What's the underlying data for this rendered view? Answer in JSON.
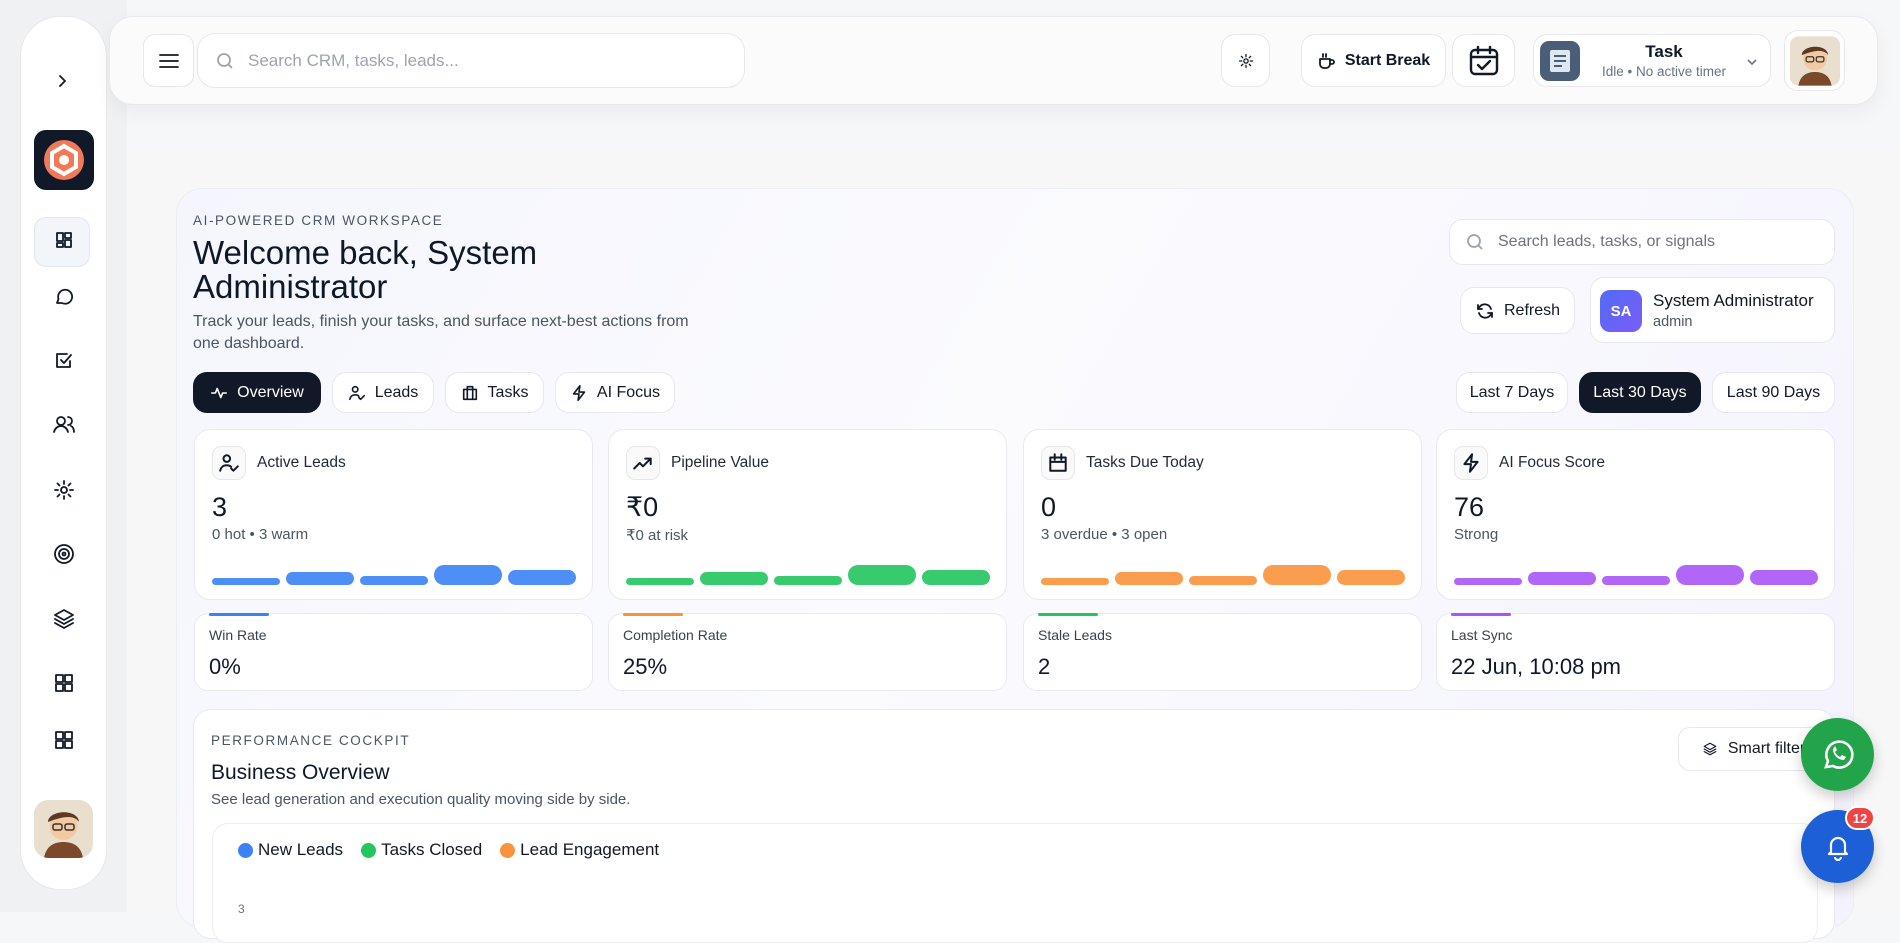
{
  "header": {
    "search_placeholder": "Search CRM, tasks, leads...",
    "start_break": "Start Break",
    "task_title": "Task",
    "task_status": "Idle • No active timer"
  },
  "hero": {
    "eyebrow": "AI-POWERED CRM WORKSPACE",
    "title": "Welcome back, System Administrator",
    "subtitle": "Track your leads, finish your tasks, and surface next-best actions from one dashboard.",
    "search_placeholder": "Search leads, tasks, or signals",
    "refresh": "Refresh",
    "user": {
      "initials": "SA",
      "name": "System Administrator",
      "role": "admin"
    }
  },
  "tabs": [
    "Overview",
    "Leads",
    "Tasks",
    "AI Focus"
  ],
  "ranges": [
    "Last 7 Days",
    "Last 30 Days",
    "Last 90 Days"
  ],
  "kpis": [
    {
      "label": "Active Leads",
      "value": "3",
      "note": "0 hot • 3 warm"
    },
    {
      "label": "Pipeline Value",
      "value": "₹0",
      "note": "₹0 at risk"
    },
    {
      "label": "Tasks Due Today",
      "value": "0",
      "note": "3 overdue • 3 open"
    },
    {
      "label": "AI Focus Score",
      "value": "76",
      "note": "Strong"
    }
  ],
  "metrics": [
    {
      "label": "Win Rate",
      "value": "0%"
    },
    {
      "label": "Completion Rate",
      "value": "25%"
    },
    {
      "label": "Stale Leads",
      "value": "2"
    },
    {
      "label": "Last Sync",
      "value": "22 Jun, 10:08 pm"
    }
  ],
  "cockpit": {
    "eyebrow": "PERFORMANCE COCKPIT",
    "title": "Business Overview",
    "subtitle": "See lead generation and execution quality moving side by side.",
    "smart_filter": "Smart filter",
    "legend": [
      "New Leads",
      "Tasks Closed",
      "Lead Engagement"
    ],
    "y_tick": "3"
  },
  "notifications": {
    "badge": "12"
  }
}
